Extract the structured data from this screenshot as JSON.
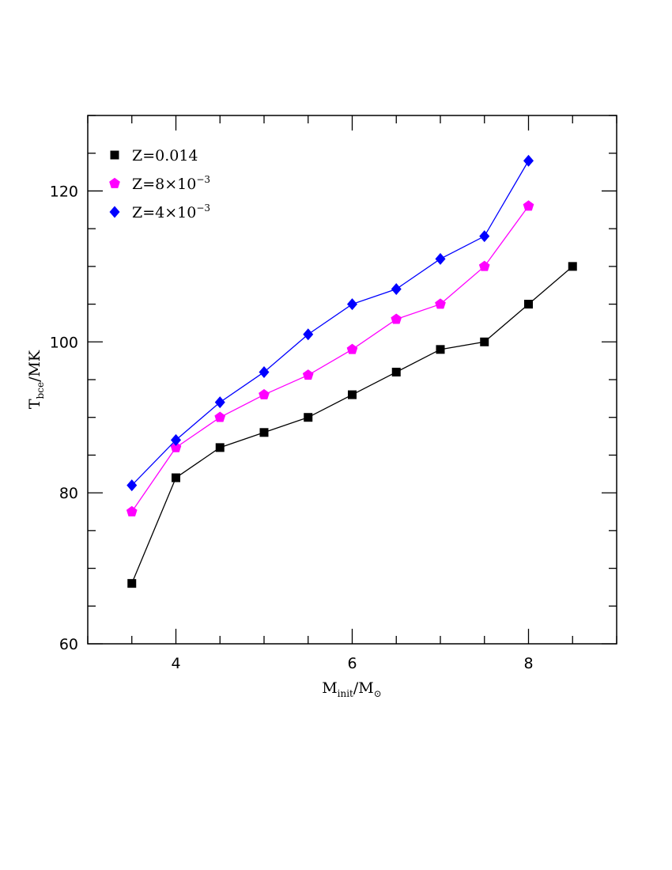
{
  "chart_data": {
    "type": "line",
    "xlabel": {
      "main": "M",
      "sub": "init",
      "sep": "/M",
      "sub2": "⊙"
    },
    "ylabel": {
      "main": "T",
      "sub": "bce",
      "rest": "/MK"
    },
    "xlim": [
      3.0,
      9.0
    ],
    "ylim": [
      60,
      130
    ],
    "xticks": [
      4,
      6,
      8
    ],
    "xtick_labels": [
      "4",
      "6",
      "8"
    ],
    "yticks": [
      60,
      80,
      100,
      120
    ],
    "ytick_labels": [
      "60",
      "80",
      "100",
      "120"
    ],
    "legend_position": "top-left",
    "series": [
      {
        "name": "Z=0.014",
        "legend_main": "Z=0.014",
        "legend_sup": "",
        "color": "#000000",
        "marker": "square",
        "x": [
          3.5,
          4.0,
          4.5,
          5.0,
          5.5,
          6.0,
          6.5,
          7.0,
          7.5,
          8.0,
          8.5
        ],
        "y": [
          68,
          82,
          86,
          88,
          90,
          93,
          96,
          99,
          100,
          105,
          110
        ]
      },
      {
        "name": "Z=8×10⁻³",
        "legend_main": "Z=8×10",
        "legend_sup": "−3",
        "color": "#ff00ff",
        "marker": "pentagon",
        "x": [
          3.5,
          4.0,
          4.5,
          5.0,
          5.5,
          6.0,
          6.5,
          7.0,
          7.5,
          8.0
        ],
        "y": [
          77.5,
          86,
          90,
          93,
          95.6,
          99,
          103,
          105,
          110,
          118
        ]
      },
      {
        "name": "Z=4×10⁻³",
        "legend_main": "Z=4×10",
        "legend_sup": "−3",
        "color": "#0000ff",
        "marker": "diamond",
        "x": [
          3.5,
          4.0,
          4.5,
          5.0,
          5.5,
          6.0,
          6.5,
          7.0,
          7.5,
          8.0
        ],
        "y": [
          81,
          87,
          92,
          96,
          101,
          105,
          107,
          111,
          114,
          124
        ]
      }
    ]
  }
}
